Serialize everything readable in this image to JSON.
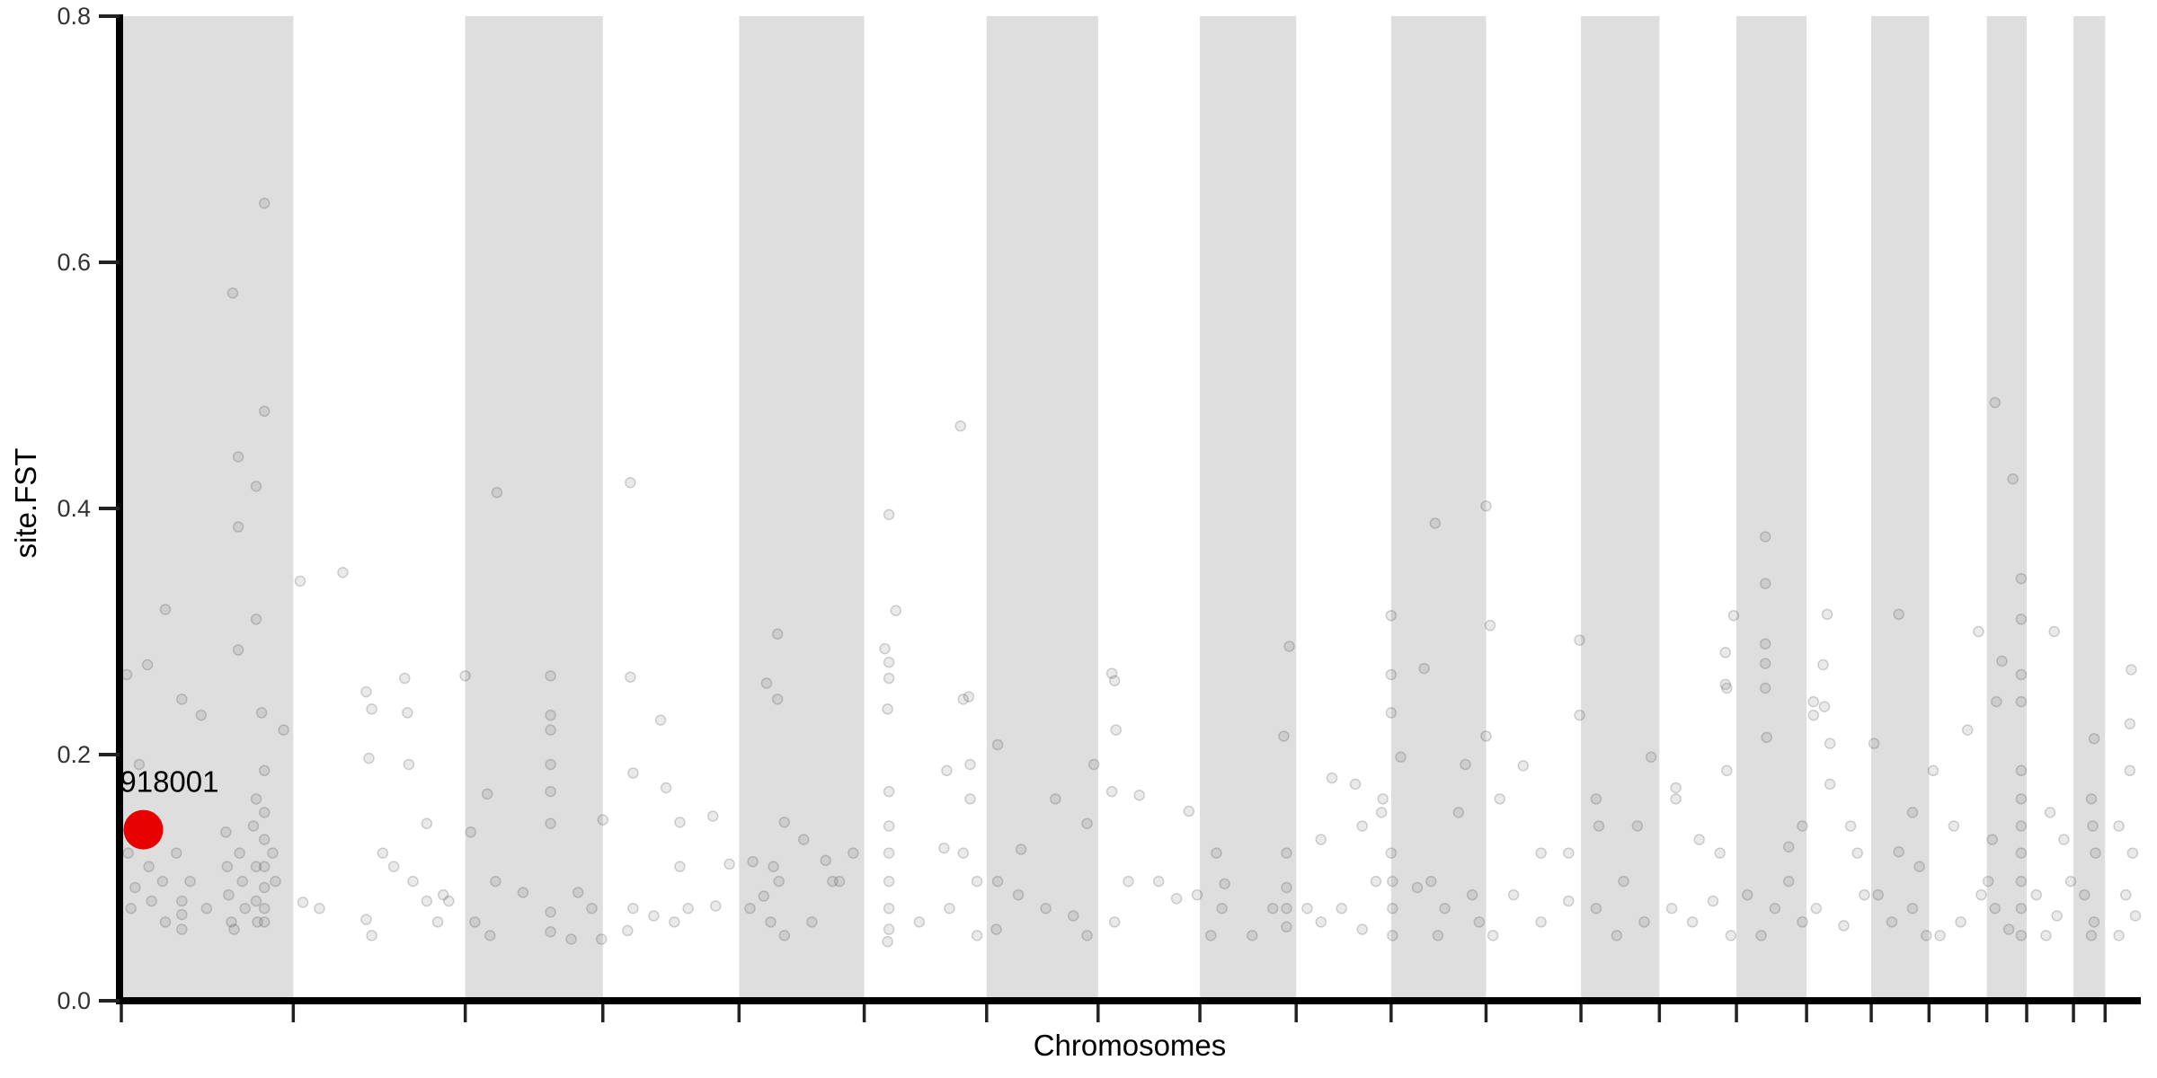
{
  "chart_data": {
    "type": "scatter",
    "title": "",
    "xlabel": "Chromosomes",
    "ylabel": "site.FST",
    "ylim": [
      0,
      0.8
    ],
    "yticks": [
      "0.0",
      "0.2",
      "0.4",
      "0.6",
      "0.8"
    ],
    "ytick_values": [
      0,
      0.2,
      0.4,
      0.6,
      0.8
    ],
    "chromosome_boundaries": [
      0,
      125,
      250,
      350,
      449,
      540,
      629,
      710,
      784,
      854,
      923,
      992,
      1061,
      1118,
      1174,
      1225,
      1272,
      1314,
      1356,
      1385,
      1419,
      1442,
      1468
    ],
    "alternating_band_color": "#dedede",
    "point_color": "#5a5a5a",
    "highlight": {
      "label": "918001",
      "x": 16,
      "fst": 0.139,
      "color": "#e60000"
    },
    "points": [
      [
        4,
        0.265
      ],
      [
        19,
        0.273
      ],
      [
        32,
        0.318
      ],
      [
        44,
        0.245
      ],
      [
        58,
        0.232
      ],
      [
        81,
        0.575
      ],
      [
        85,
        0.442
      ],
      [
        85,
        0.385
      ],
      [
        85,
        0.285
      ],
      [
        98,
        0.418
      ],
      [
        98,
        0.31
      ],
      [
        104,
        0.648
      ],
      [
        104,
        0.479
      ],
      [
        102,
        0.234
      ],
      [
        118,
        0.22
      ],
      [
        13,
        0.192
      ],
      [
        5,
        0.12
      ],
      [
        7,
        0.075
      ],
      [
        10,
        0.092
      ],
      [
        20,
        0.109
      ],
      [
        22,
        0.081
      ],
      [
        30,
        0.097
      ],
      [
        32,
        0.064
      ],
      [
        40,
        0.12
      ],
      [
        44,
        0.081
      ],
      [
        44,
        0.07
      ],
      [
        44,
        0.058
      ],
      [
        50,
        0.097
      ],
      [
        62,
        0.075
      ],
      [
        76,
        0.137
      ],
      [
        77,
        0.109
      ],
      [
        78,
        0.086
      ],
      [
        80,
        0.064
      ],
      [
        82,
        0.058
      ],
      [
        86,
        0.12
      ],
      [
        88,
        0.097
      ],
      [
        90,
        0.075
      ],
      [
        96,
        0.142
      ],
      [
        98,
        0.164
      ],
      [
        98,
        0.109
      ],
      [
        98,
        0.081
      ],
      [
        99,
        0.064
      ],
      [
        104,
        0.187
      ],
      [
        104,
        0.153
      ],
      [
        104,
        0.131
      ],
      [
        104,
        0.109
      ],
      [
        104,
        0.092
      ],
      [
        104,
        0.075
      ],
      [
        104,
        0.064
      ],
      [
        110,
        0.12
      ],
      [
        112,
        0.097
      ],
      [
        130,
        0.341
      ],
      [
        161,
        0.348
      ],
      [
        178,
        0.251
      ],
      [
        182,
        0.237
      ],
      [
        206,
        0.262
      ],
      [
        208,
        0.234
      ],
      [
        180,
        0.197
      ],
      [
        209,
        0.192
      ],
      [
        222,
        0.144
      ],
      [
        234,
        0.086
      ],
      [
        144,
        0.075
      ],
      [
        132,
        0.08
      ],
      [
        178,
        0.066
      ],
      [
        182,
        0.053
      ],
      [
        212,
        0.097
      ],
      [
        222,
        0.081
      ],
      [
        230,
        0.064
      ],
      [
        238,
        0.081
      ],
      [
        190,
        0.12
      ],
      [
        198,
        0.109
      ],
      [
        250,
        0.264
      ],
      [
        273,
        0.413
      ],
      [
        312,
        0.264
      ],
      [
        312,
        0.232
      ],
      [
        312,
        0.22
      ],
      [
        266,
        0.168
      ],
      [
        312,
        0.192
      ],
      [
        312,
        0.17
      ],
      [
        312,
        0.144
      ],
      [
        254,
        0.137
      ],
      [
        272,
        0.097
      ],
      [
        292,
        0.088
      ],
      [
        312,
        0.072
      ],
      [
        312,
        0.056
      ],
      [
        332,
        0.088
      ],
      [
        342,
        0.075
      ],
      [
        350,
        0.147
      ],
      [
        257,
        0.064
      ],
      [
        268,
        0.053
      ],
      [
        327,
        0.05
      ],
      [
        349,
        0.05
      ],
      [
        370,
        0.421
      ],
      [
        370,
        0.263
      ],
      [
        372,
        0.185
      ],
      [
        392,
        0.228
      ],
      [
        396,
        0.173
      ],
      [
        406,
        0.145
      ],
      [
        406,
        0.109
      ],
      [
        372,
        0.075
      ],
      [
        387,
        0.069
      ],
      [
        402,
        0.064
      ],
      [
        412,
        0.075
      ],
      [
        430,
        0.15
      ],
      [
        442,
        0.111
      ],
      [
        432,
        0.077
      ],
      [
        368,
        0.057
      ],
      [
        469,
        0.258
      ],
      [
        477,
        0.245
      ],
      [
        477,
        0.298
      ],
      [
        459,
        0.113
      ],
      [
        467,
        0.085
      ],
      [
        474,
        0.109
      ],
      [
        478,
        0.097
      ],
      [
        482,
        0.145
      ],
      [
        496,
        0.131
      ],
      [
        512,
        0.114
      ],
      [
        522,
        0.097
      ],
      [
        532,
        0.12
      ],
      [
        457,
        0.075
      ],
      [
        472,
        0.064
      ],
      [
        482,
        0.053
      ],
      [
        517,
        0.097
      ],
      [
        502,
        0.064
      ],
      [
        558,
        0.395
      ],
      [
        563,
        0.317
      ],
      [
        555,
        0.286
      ],
      [
        558,
        0.275
      ],
      [
        558,
        0.262
      ],
      [
        557,
        0.237
      ],
      [
        558,
        0.17
      ],
      [
        558,
        0.142
      ],
      [
        558,
        0.12
      ],
      [
        558,
        0.097
      ],
      [
        558,
        0.075
      ],
      [
        558,
        0.058
      ],
      [
        557,
        0.048
      ],
      [
        610,
        0.467
      ],
      [
        612,
        0.245
      ],
      [
        616,
        0.247
      ],
      [
        617,
        0.192
      ],
      [
        617,
        0.164
      ],
      [
        600,
        0.187
      ],
      [
        598,
        0.124
      ],
      [
        612,
        0.12
      ],
      [
        622,
        0.097
      ],
      [
        580,
        0.064
      ],
      [
        602,
        0.075
      ],
      [
        622,
        0.053
      ],
      [
        637,
        0.208
      ],
      [
        654,
        0.123
      ],
      [
        679,
        0.164
      ],
      [
        702,
        0.144
      ],
      [
        707,
        0.192
      ],
      [
        720,
        0.266
      ],
      [
        722,
        0.26
      ],
      [
        723,
        0.22
      ],
      [
        637,
        0.097
      ],
      [
        652,
        0.086
      ],
      [
        672,
        0.075
      ],
      [
        692,
        0.069
      ],
      [
        702,
        0.053
      ],
      [
        636,
        0.058
      ],
      [
        740,
        0.167
      ],
      [
        776,
        0.154
      ],
      [
        720,
        0.17
      ],
      [
        754,
        0.097
      ],
      [
        767,
        0.083
      ],
      [
        782,
        0.086
      ],
      [
        722,
        0.064
      ],
      [
        732,
        0.097
      ],
      [
        796,
        0.12
      ],
      [
        802,
        0.095
      ],
      [
        800,
        0.075
      ],
      [
        849,
        0.288
      ],
      [
        845,
        0.215
      ],
      [
        847,
        0.12
      ],
      [
        847,
        0.092
      ],
      [
        847,
        0.075
      ],
      [
        847,
        0.06
      ],
      [
        792,
        0.053
      ],
      [
        822,
        0.053
      ],
      [
        837,
        0.075
      ],
      [
        872,
        0.131
      ],
      [
        880,
        0.181
      ],
      [
        897,
        0.176
      ],
      [
        902,
        0.142
      ],
      [
        912,
        0.097
      ],
      [
        862,
        0.075
      ],
      [
        872,
        0.064
      ],
      [
        887,
        0.075
      ],
      [
        902,
        0.058
      ],
      [
        917,
        0.164
      ],
      [
        916,
        0.153
      ],
      [
        923,
        0.313
      ],
      [
        923,
        0.265
      ],
      [
        923,
        0.234
      ],
      [
        930,
        0.198
      ],
      [
        947,
        0.27
      ],
      [
        955,
        0.388
      ],
      [
        992,
        0.402
      ],
      [
        995,
        0.305
      ],
      [
        992,
        0.215
      ],
      [
        977,
        0.192
      ],
      [
        972,
        0.153
      ],
      [
        923,
        0.12
      ],
      [
        924,
        0.097
      ],
      [
        924,
        0.075
      ],
      [
        924,
        0.053
      ],
      [
        952,
        0.097
      ],
      [
        962,
        0.075
      ],
      [
        982,
        0.086
      ],
      [
        987,
        0.064
      ],
      [
        957,
        0.053
      ],
      [
        942,
        0.092
      ],
      [
        1002,
        0.164
      ],
      [
        1019,
        0.191
      ],
      [
        1032,
        0.12
      ],
      [
        1052,
        0.12
      ],
      [
        1060,
        0.293
      ],
      [
        1060,
        0.232
      ],
      [
        1012,
        0.086
      ],
      [
        1032,
        0.064
      ],
      [
        1052,
        0.081
      ],
      [
        997,
        0.053
      ],
      [
        1072,
        0.164
      ],
      [
        1074,
        0.142
      ],
      [
        1092,
        0.097
      ],
      [
        1102,
        0.142
      ],
      [
        1112,
        0.198
      ],
      [
        1072,
        0.075
      ],
      [
        1087,
        0.053
      ],
      [
        1107,
        0.064
      ],
      [
        1130,
        0.173
      ],
      [
        1130,
        0.164
      ],
      [
        1147,
        0.131
      ],
      [
        1162,
        0.12
      ],
      [
        1166,
        0.283
      ],
      [
        1166,
        0.257
      ],
      [
        1167,
        0.254
      ],
      [
        1172,
        0.313
      ],
      [
        1167,
        0.187
      ],
      [
        1127,
        0.075
      ],
      [
        1142,
        0.064
      ],
      [
        1157,
        0.081
      ],
      [
        1170,
        0.053
      ],
      [
        1195,
        0.377
      ],
      [
        1195,
        0.339
      ],
      [
        1195,
        0.29
      ],
      [
        1195,
        0.274
      ],
      [
        1195,
        0.254
      ],
      [
        1196,
        0.214
      ],
      [
        1212,
        0.125
      ],
      [
        1222,
        0.142
      ],
      [
        1182,
        0.086
      ],
      [
        1202,
        0.075
      ],
      [
        1212,
        0.097
      ],
      [
        1222,
        0.064
      ],
      [
        1192,
        0.053
      ],
      [
        1240,
        0.314
      ],
      [
        1237,
        0.273
      ],
      [
        1238,
        0.239
      ],
      [
        1242,
        0.209
      ],
      [
        1230,
        0.243
      ],
      [
        1230,
        0.232
      ],
      [
        1242,
        0.176
      ],
      [
        1257,
        0.142
      ],
      [
        1262,
        0.12
      ],
      [
        1232,
        0.075
      ],
      [
        1252,
        0.061
      ],
      [
        1267,
        0.086
      ],
      [
        1274,
        0.209
      ],
      [
        1292,
        0.314
      ],
      [
        1302,
        0.153
      ],
      [
        1292,
        0.121
      ],
      [
        1307,
        0.109
      ],
      [
        1277,
        0.086
      ],
      [
        1287,
        0.064
      ],
      [
        1302,
        0.075
      ],
      [
        1312,
        0.053
      ],
      [
        1350,
        0.3
      ],
      [
        1342,
        0.22
      ],
      [
        1317,
        0.187
      ],
      [
        1332,
        0.142
      ],
      [
        1352,
        0.086
      ],
      [
        1322,
        0.053
      ],
      [
        1337,
        0.064
      ],
      [
        1362,
        0.486
      ],
      [
        1375,
        0.424
      ],
      [
        1381,
        0.343
      ],
      [
        1381,
        0.31
      ],
      [
        1381,
        0.265
      ],
      [
        1381,
        0.243
      ],
      [
        1367,
        0.276
      ],
      [
        1363,
        0.243
      ],
      [
        1381,
        0.187
      ],
      [
        1381,
        0.164
      ],
      [
        1381,
        0.142
      ],
      [
        1381,
        0.12
      ],
      [
        1381,
        0.097
      ],
      [
        1381,
        0.075
      ],
      [
        1381,
        0.053
      ],
      [
        1357,
        0.097
      ],
      [
        1362,
        0.075
      ],
      [
        1372,
        0.058
      ],
      [
        1360,
        0.131
      ],
      [
        1405,
        0.3
      ],
      [
        1402,
        0.153
      ],
      [
        1412,
        0.131
      ],
      [
        1392,
        0.086
      ],
      [
        1407,
        0.069
      ],
      [
        1399,
        0.053
      ],
      [
        1417,
        0.097
      ],
      [
        1434,
        0.213
      ],
      [
        1432,
        0.164
      ],
      [
        1433,
        0.142
      ],
      [
        1435,
        0.12
      ],
      [
        1427,
        0.086
      ],
      [
        1434,
        0.064
      ],
      [
        1432,
        0.053
      ],
      [
        1461,
        0.269
      ],
      [
        1460,
        0.225
      ],
      [
        1460,
        0.187
      ],
      [
        1452,
        0.142
      ],
      [
        1462,
        0.12
      ],
      [
        1457,
        0.086
      ],
      [
        1464,
        0.069
      ],
      [
        1452,
        0.053
      ]
    ]
  }
}
